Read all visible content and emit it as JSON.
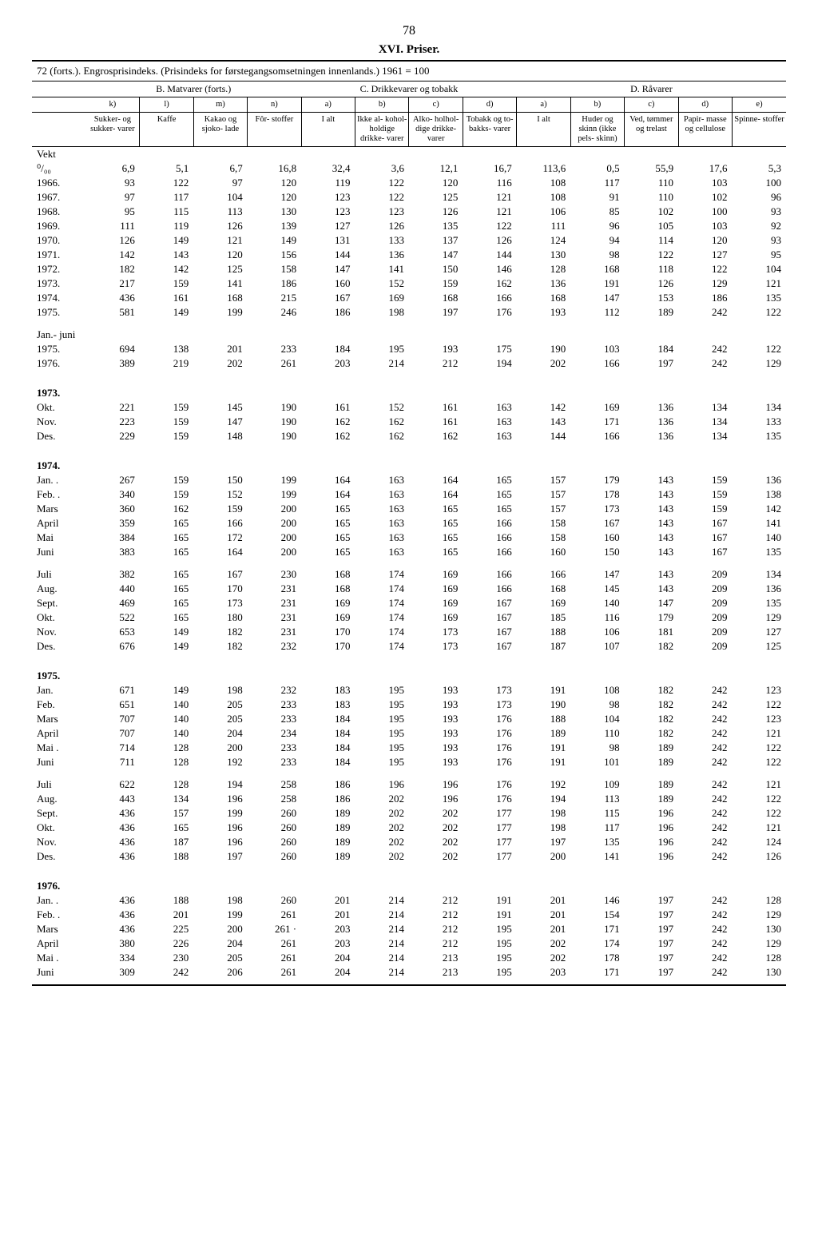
{
  "page_number": "78",
  "title": "XVI. Priser.",
  "subtitle": "72 (forts.). Engrosprisindeks. (Prisindeks for førstegangsomsetningen innenlands.) 1961 = 100",
  "section_headers": [
    "B. Matvarer (forts.)",
    "C. Drikkevarer og tobakk",
    "D. Råvarer"
  ],
  "col_letters": [
    "k)",
    "l)",
    "m)",
    "n)",
    "a)",
    "b)",
    "c)",
    "d)",
    "a)",
    "b)",
    "c)",
    "d)",
    "e)"
  ],
  "col_labels": [
    "Sukker- og sukker- varer",
    "Kaffe",
    "Kakao og sjoko- lade",
    "Fôr- stoffer",
    "I alt",
    "Ikke al- kohol- holdige drikke- varer",
    "Alko- holhol- dige drikke- varer",
    "Tobakk og to- bakks- varer",
    "I alt",
    "Huder og skinn (ikke pels- skinn)",
    "Ved, tømmer og trelast",
    "Papir- masse og cellulose",
    "Spinne- stoffer"
  ],
  "rows": [
    {
      "label": "Vekt",
      "values": [
        "",
        "",
        "",
        "",
        "",
        "",
        "",
        "",
        "",
        "",
        "",
        "",
        ""
      ]
    },
    {
      "label": "⁰/₀₀",
      "values": [
        "6,9",
        "5,1",
        "6,7",
        "16,8",
        "32,4",
        "3,6",
        "12,1",
        "16,7",
        "113,6",
        "0,5",
        "55,9",
        "17,6",
        "5,3"
      ]
    },
    {
      "label": "1966.",
      "values": [
        "93",
        "122",
        "97",
        "120",
        "119",
        "122",
        "120",
        "116",
        "108",
        "117",
        "110",
        "103",
        "100"
      ]
    },
    {
      "label": "1967.",
      "values": [
        "97",
        "117",
        "104",
        "120",
        "123",
        "122",
        "125",
        "121",
        "108",
        "91",
        "110",
        "102",
        "96"
      ]
    },
    {
      "label": "1968.",
      "values": [
        "95",
        "115",
        "113",
        "130",
        "123",
        "123",
        "126",
        "121",
        "106",
        "85",
        "102",
        "100",
        "93"
      ]
    },
    {
      "label": "1969.",
      "values": [
        "111",
        "119",
        "126",
        "139",
        "127",
        "126",
        "135",
        "122",
        "111",
        "96",
        "105",
        "103",
        "92"
      ]
    },
    {
      "label": "1970.",
      "values": [
        "126",
        "149",
        "121",
        "149",
        "131",
        "133",
        "137",
        "126",
        "124",
        "94",
        "114",
        "120",
        "93"
      ]
    },
    {
      "label": "1971.",
      "values": [
        "142",
        "143",
        "120",
        "156",
        "144",
        "136",
        "147",
        "144",
        "130",
        "98",
        "122",
        "127",
        "95"
      ]
    },
    {
      "label": "1972.",
      "values": [
        "182",
        "142",
        "125",
        "158",
        "147",
        "141",
        "150",
        "146",
        "128",
        "168",
        "118",
        "122",
        "104"
      ]
    },
    {
      "label": "1973.",
      "values": [
        "217",
        "159",
        "141",
        "186",
        "160",
        "152",
        "159",
        "162",
        "136",
        "191",
        "126",
        "129",
        "121"
      ]
    },
    {
      "label": "1974.",
      "values": [
        "436",
        "161",
        "168",
        "215",
        "167",
        "169",
        "168",
        "166",
        "168",
        "147",
        "153",
        "186",
        "135"
      ]
    },
    {
      "label": "1975.",
      "values": [
        "581",
        "149",
        "199",
        "246",
        "186",
        "198",
        "197",
        "176",
        "193",
        "112",
        "189",
        "242",
        "122"
      ]
    }
  ],
  "jan_juni_label": "Jan.- juni",
  "jan_juni_rows": [
    {
      "label": "1975.",
      "values": [
        "694",
        "138",
        "201",
        "233",
        "184",
        "195",
        "193",
        "175",
        "190",
        "103",
        "184",
        "242",
        "122"
      ]
    },
    {
      "label": "1976.",
      "values": [
        "389",
        "219",
        "202",
        "261",
        "203",
        "214",
        "212",
        "194",
        "202",
        "166",
        "197",
        "242",
        "129"
      ]
    }
  ],
  "y1973_label": "1973.",
  "y1973_rows": [
    {
      "label": "Okt.",
      "values": [
        "221",
        "159",
        "145",
        "190",
        "161",
        "152",
        "161",
        "163",
        "142",
        "169",
        "136",
        "134",
        "134"
      ]
    },
    {
      "label": "Nov.",
      "values": [
        "223",
        "159",
        "147",
        "190",
        "162",
        "162",
        "161",
        "163",
        "143",
        "171",
        "136",
        "134",
        "133"
      ]
    },
    {
      "label": "Des.",
      "values": [
        "229",
        "159",
        "148",
        "190",
        "162",
        "162",
        "162",
        "163",
        "144",
        "166",
        "136",
        "134",
        "135"
      ]
    }
  ],
  "y1974_label": "1974.",
  "y1974_rows": [
    {
      "label": "Jan. .",
      "values": [
        "267",
        "159",
        "150",
        "199",
        "164",
        "163",
        "164",
        "165",
        "157",
        "179",
        "143",
        "159",
        "136"
      ]
    },
    {
      "label": "Feb. .",
      "values": [
        "340",
        "159",
        "152",
        "199",
        "164",
        "163",
        "164",
        "165",
        "157",
        "178",
        "143",
        "159",
        "138"
      ]
    },
    {
      "label": "Mars",
      "values": [
        "360",
        "162",
        "159",
        "200",
        "165",
        "163",
        "165",
        "165",
        "157",
        "173",
        "143",
        "159",
        "142"
      ]
    },
    {
      "label": "April",
      "values": [
        "359",
        "165",
        "166",
        "200",
        "165",
        "163",
        "165",
        "166",
        "158",
        "167",
        "143",
        "167",
        "141"
      ]
    },
    {
      "label": "Mai",
      "values": [
        "384",
        "165",
        "172",
        "200",
        "165",
        "163",
        "165",
        "166",
        "158",
        "160",
        "143",
        "167",
        "140"
      ]
    },
    {
      "label": "Juni",
      "values": [
        "383",
        "165",
        "164",
        "200",
        "165",
        "163",
        "165",
        "166",
        "160",
        "150",
        "143",
        "167",
        "135"
      ]
    }
  ],
  "y1974b_rows": [
    {
      "label": "Juli",
      "values": [
        "382",
        "165",
        "167",
        "230",
        "168",
        "174",
        "169",
        "166",
        "166",
        "147",
        "143",
        "209",
        "134"
      ]
    },
    {
      "label": "Aug.",
      "values": [
        "440",
        "165",
        "170",
        "231",
        "168",
        "174",
        "169",
        "166",
        "168",
        "145",
        "143",
        "209",
        "136"
      ]
    },
    {
      "label": "Sept.",
      "values": [
        "469",
        "165",
        "173",
        "231",
        "169",
        "174",
        "169",
        "167",
        "169",
        "140",
        "147",
        "209",
        "135"
      ]
    },
    {
      "label": "Okt.",
      "values": [
        "522",
        "165",
        "180",
        "231",
        "169",
        "174",
        "169",
        "167",
        "185",
        "116",
        "179",
        "209",
        "129"
      ]
    },
    {
      "label": "Nov.",
      "values": [
        "653",
        "149",
        "182",
        "231",
        "170",
        "174",
        "173",
        "167",
        "188",
        "106",
        "181",
        "209",
        "127"
      ]
    },
    {
      "label": "Des.",
      "values": [
        "676",
        "149",
        "182",
        "232",
        "170",
        "174",
        "173",
        "167",
        "187",
        "107",
        "182",
        "209",
        "125"
      ]
    }
  ],
  "y1975_label": "1975.",
  "y1975_rows": [
    {
      "label": "Jan.",
      "values": [
        "671",
        "149",
        "198",
        "232",
        "183",
        "195",
        "193",
        "173",
        "191",
        "108",
        "182",
        "242",
        "123"
      ]
    },
    {
      "label": "Feb.",
      "values": [
        "651",
        "140",
        "205",
        "233",
        "183",
        "195",
        "193",
        "173",
        "190",
        "98",
        "182",
        "242",
        "122"
      ]
    },
    {
      "label": "Mars",
      "values": [
        "707",
        "140",
        "205",
        "233",
        "184",
        "195",
        "193",
        "176",
        "188",
        "104",
        "182",
        "242",
        "123"
      ]
    },
    {
      "label": "April",
      "values": [
        "707",
        "140",
        "204",
        "234",
        "184",
        "195",
        "193",
        "176",
        "189",
        "110",
        "182",
        "242",
        "121"
      ]
    },
    {
      "label": "Mai .",
      "values": [
        "714",
        "128",
        "200",
        "233",
        "184",
        "195",
        "193",
        "176",
        "191",
        "98",
        "189",
        "242",
        "122"
      ]
    },
    {
      "label": "Juni",
      "values": [
        "711",
        "128",
        "192",
        "233",
        "184",
        "195",
        "193",
        "176",
        "191",
        "101",
        "189",
        "242",
        "122"
      ]
    }
  ],
  "y1975b_rows": [
    {
      "label": "Juli",
      "values": [
        "622",
        "128",
        "194",
        "258",
        "186",
        "196",
        "196",
        "176",
        "192",
        "109",
        "189",
        "242",
        "121"
      ]
    },
    {
      "label": "Aug.",
      "values": [
        "443",
        "134",
        "196",
        "258",
        "186",
        "202",
        "196",
        "176",
        "194",
        "113",
        "189",
        "242",
        "122"
      ]
    },
    {
      "label": "Sept.",
      "values": [
        "436",
        "157",
        "199",
        "260",
        "189",
        "202",
        "202",
        "177",
        "198",
        "115",
        "196",
        "242",
        "122"
      ]
    },
    {
      "label": "Okt.",
      "values": [
        "436",
        "165",
        "196",
        "260",
        "189",
        "202",
        "202",
        "177",
        "198",
        "117",
        "196",
        "242",
        "121"
      ]
    },
    {
      "label": "Nov.",
      "values": [
        "436",
        "187",
        "196",
        "260",
        "189",
        "202",
        "202",
        "177",
        "197",
        "135",
        "196",
        "242",
        "124"
      ]
    },
    {
      "label": "Des.",
      "values": [
        "436",
        "188",
        "197",
        "260",
        "189",
        "202",
        "202",
        "177",
        "200",
        "141",
        "196",
        "242",
        "126"
      ]
    }
  ],
  "y1976_label": "1976.",
  "y1976_rows": [
    {
      "label": "Jan. .",
      "values": [
        "436",
        "188",
        "198",
        "260",
        "201",
        "214",
        "212",
        "191",
        "201",
        "146",
        "197",
        "242",
        "128"
      ]
    },
    {
      "label": "Feb. .",
      "values": [
        "436",
        "201",
        "199",
        "261",
        "201",
        "214",
        "212",
        "191",
        "201",
        "154",
        "197",
        "242",
        "129"
      ]
    },
    {
      "label": "Mars",
      "values": [
        "436",
        "225",
        "200",
        "261 ·",
        "203",
        "214",
        "212",
        "195",
        "201",
        "171",
        "197",
        "242",
        "130"
      ]
    },
    {
      "label": "April",
      "values": [
        "380",
        "226",
        "204",
        "261",
        "203",
        "214",
        "212",
        "195",
        "202",
        "174",
        "197",
        "242",
        "129"
      ]
    },
    {
      "label": "Mai .",
      "values": [
        "334",
        "230",
        "205",
        "261",
        "204",
        "214",
        "213",
        "195",
        "202",
        "178",
        "197",
        "242",
        "128"
      ]
    },
    {
      "label": "Juni",
      "values": [
        "309",
        "242",
        "206",
        "261",
        "204",
        "214",
        "213",
        "195",
        "203",
        "171",
        "197",
        "242",
        "130"
      ]
    }
  ]
}
